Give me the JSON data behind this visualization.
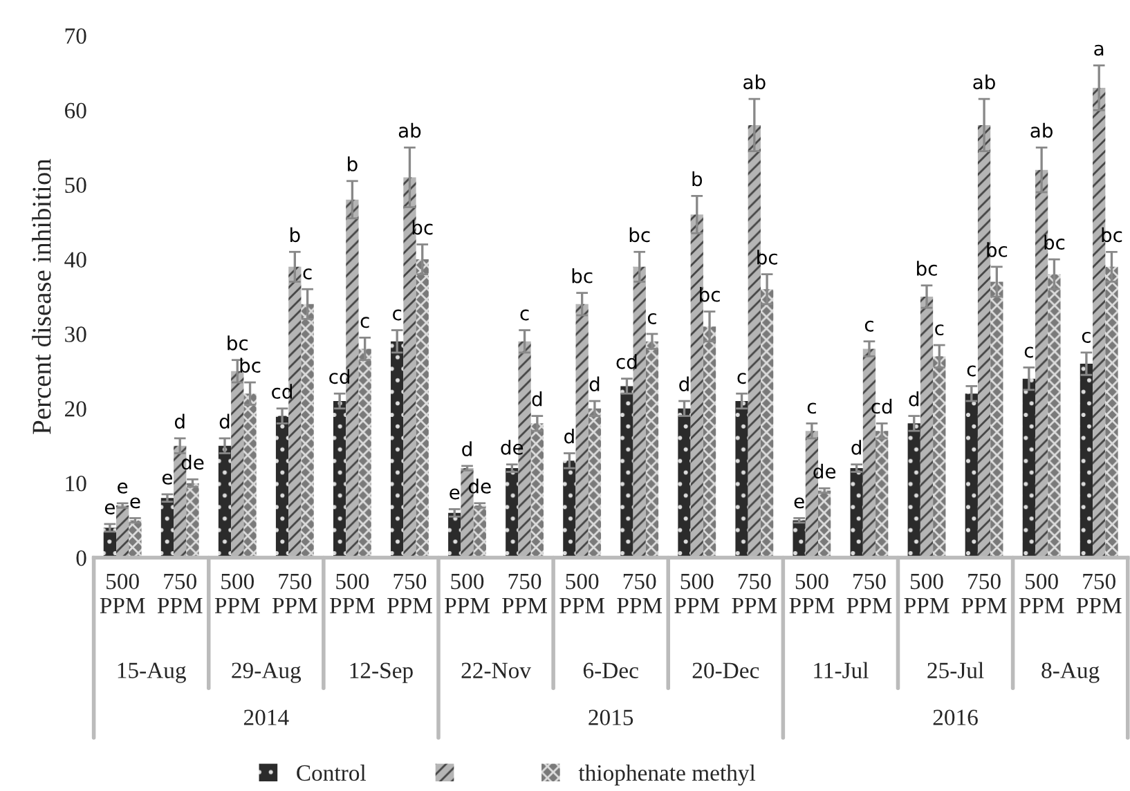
{
  "chart_data": {
    "type": "bar",
    "ylabel": "Percent disease inhibition",
    "categories": [
      "500\nPPM",
      "750\nPPM",
      "500\nPPM",
      "750\nPPM",
      "500\nPPM",
      "750\nPPM",
      "500\nPPM",
      "750\nPPM",
      "500\nPPM",
      "750\nPPM",
      "500\nPPM",
      "750\nPPM",
      "500\nPPM",
      "750\nPPM",
      "500\nPPM",
      "750\nPPM",
      "500\nPPM",
      "750\nPPM"
    ],
    "series": [
      {
        "name": "Control",
        "color": "#2b2b2b",
        "values": [
          4,
          8,
          15,
          19,
          21,
          29,
          6,
          12,
          13,
          23,
          20,
          21,
          5,
          12,
          18,
          22,
          24,
          26
        ],
        "errors": [
          0.5,
          0.5,
          1,
          1,
          1,
          1.5,
          0.5,
          0.5,
          1,
          1,
          1,
          1,
          0.3,
          0.5,
          1,
          1,
          1.5,
          1.5
        ],
        "value_labels": [
          "e",
          "e",
          "d",
          "cd",
          "cd",
          "c",
          "e",
          "de",
          "d",
          "cd",
          "d",
          "c",
          "e",
          "d",
          "d",
          "c",
          "c",
          "c"
        ]
      },
      {
        "color": "#b5b5b5",
        "values": [
          7,
          15,
          25,
          39,
          48,
          51,
          12,
          29,
          34,
          39,
          46,
          58,
          17,
          28,
          35,
          58,
          52,
          63
        ],
        "errors": [
          0.3,
          1,
          1.5,
          2,
          2.5,
          4,
          0.3,
          1.5,
          1.5,
          2,
          2.5,
          3.5,
          1,
          1,
          1.5,
          3.5,
          3,
          3
        ],
        "value_labels": [
          "e",
          "d",
          "bc",
          "b",
          "b",
          "ab",
          "d",
          "c",
          "bc",
          "bc",
          "b",
          "ab",
          "c",
          "c",
          "bc",
          "ab",
          "ab",
          "a"
        ]
      },
      {
        "name": "thiophenate methyl",
        "color": "#7a7a7a",
        "values": [
          5,
          10,
          22,
          34,
          28,
          40,
          7,
          18,
          20,
          29,
          31,
          36,
          9,
          17,
          27,
          37,
          38,
          39
        ],
        "errors": [
          0.3,
          0.5,
          1.5,
          2,
          1.5,
          2,
          0.3,
          1,
          1,
          1,
          2,
          2,
          0.3,
          1,
          1.5,
          2,
          2,
          2
        ],
        "value_labels": [
          "e",
          "de",
          "bc",
          "c",
          "c",
          "bc",
          "de",
          "d",
          "d",
          "c",
          "bc",
          "bc",
          "de",
          "cd",
          "c",
          "bc",
          "bc",
          "bc"
        ]
      }
    ],
    "ylim": [
      0,
      70
    ],
    "yticks": [
      0,
      10,
      20,
      30,
      40,
      50,
      60,
      70
    ],
    "legend": "bottom",
    "annotations": [
      "15-Aug",
      "29-Aug",
      "12-Sep",
      "22-Nov",
      "6-Dec",
      "20-Dec",
      "11-Jul",
      "25-Jul",
      "8-Aug",
      "2014",
      "2015",
      "2016"
    ]
  }
}
